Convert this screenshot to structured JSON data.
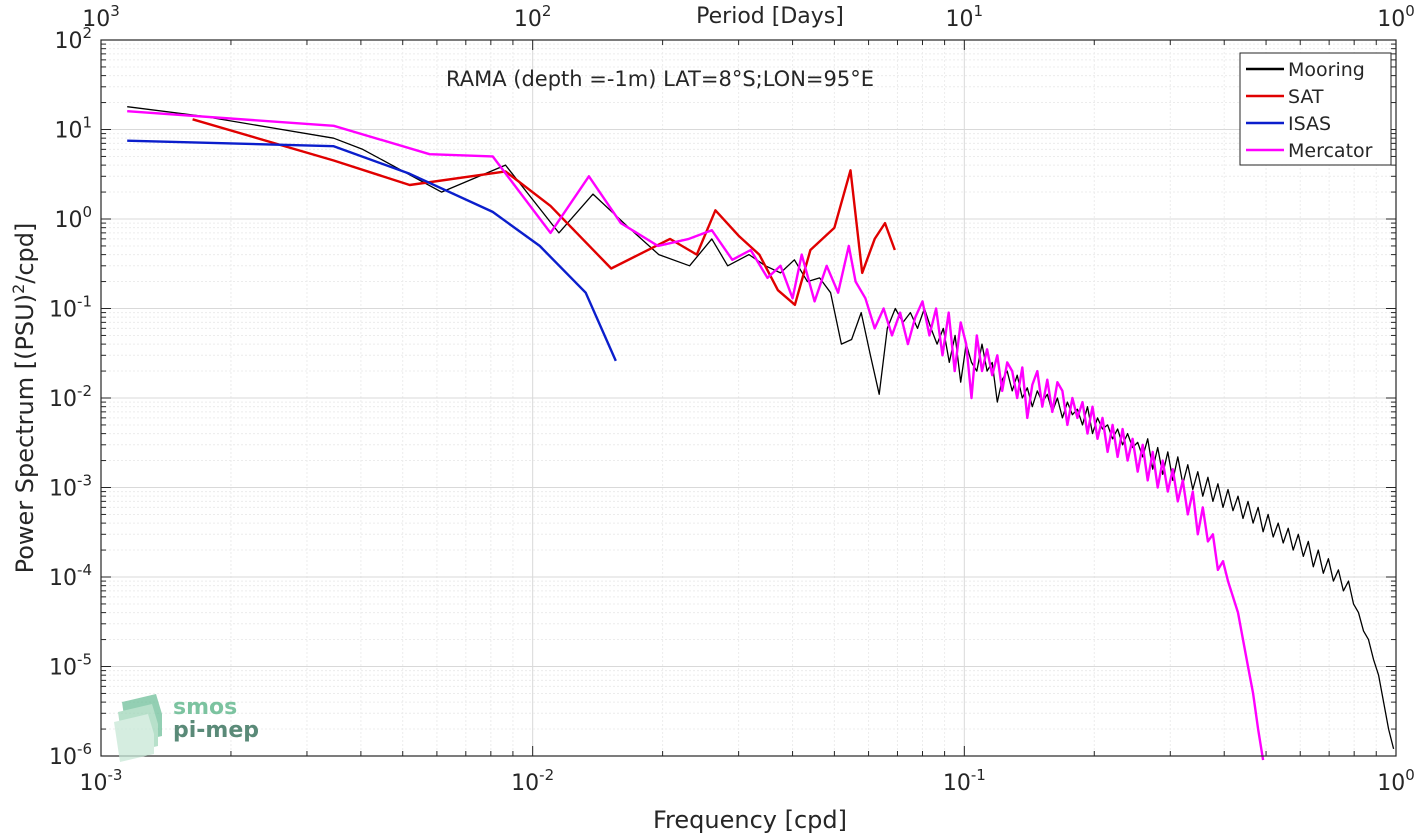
{
  "chart_data": {
    "type": "line",
    "title": "RAMA (depth =-1m) LAT=8°S;LON=95°E",
    "xlabel": "Frequency [cpd]",
    "ylabel_parts": {
      "pre": "Power Spectrum [(PSU)",
      "sup": "2",
      "post": "/cpd]"
    },
    "top_xlabel": "Period [Days]",
    "x_scale": "log",
    "y_scale": "log",
    "xlim": [
      0.001,
      1
    ],
    "ylim": [
      1e-06,
      100
    ],
    "grid": true,
    "minor_grid": true,
    "legend_position": "top-right",
    "x_ticks": [
      {
        "value": 0.001,
        "base": "10",
        "exp": "-3"
      },
      {
        "value": 0.01,
        "base": "10",
        "exp": "-2"
      },
      {
        "value": 0.1,
        "base": "10",
        "exp": "-1"
      },
      {
        "value": 1,
        "base": "10",
        "exp": "0"
      }
    ],
    "top_ticks": [
      {
        "freq": 0.001,
        "base": "10",
        "exp": "3"
      },
      {
        "freq": 0.01,
        "base": "10",
        "exp": "2"
      },
      {
        "freq": 0.1,
        "base": "10",
        "exp": "1"
      },
      {
        "freq": 1,
        "base": "10",
        "exp": "0"
      }
    ],
    "y_ticks": [
      {
        "value": 100,
        "base": "10",
        "exp": "2"
      },
      {
        "value": 10,
        "base": "10",
        "exp": "1"
      },
      {
        "value": 1,
        "base": "10",
        "exp": "0"
      },
      {
        "value": 0.1,
        "base": "10",
        "exp": "-1"
      },
      {
        "value": 0.01,
        "base": "10",
        "exp": "-2"
      },
      {
        "value": 0.001,
        "base": "10",
        "exp": "-3"
      },
      {
        "value": 0.0001,
        "base": "10",
        "exp": "-4"
      },
      {
        "value": 1e-05,
        "base": "10",
        "exp": "-5"
      },
      {
        "value": 1e-06,
        "base": "10",
        "exp": "-6"
      }
    ],
    "series": [
      {
        "name": "Mooring",
        "color": "#000000",
        "width": 1.3,
        "x": [
          0.00115,
          0.00173,
          0.00346,
          0.00404,
          0.00615,
          0.00865,
          0.0115,
          0.0138,
          0.0167,
          0.0196,
          0.0231,
          0.026,
          0.0283,
          0.0317,
          0.0346,
          0.0375,
          0.0404,
          0.0433,
          0.0462,
          0.049,
          0.0519,
          0.0548,
          0.0577,
          0.0606,
          0.0635,
          0.0663,
          0.0692,
          0.0721,
          0.075,
          0.0779,
          0.0808,
          0.0837,
          0.0865,
          0.0894,
          0.0923,
          0.0952,
          0.0981,
          0.101,
          0.1039,
          0.1069,
          0.1099,
          0.1129,
          0.116,
          0.1192,
          0.1224,
          0.1257,
          0.1291,
          0.1326,
          0.1362,
          0.1399,
          0.1437,
          0.1476,
          0.1516,
          0.1557,
          0.1599,
          0.1643,
          0.1687,
          0.1733,
          0.178,
          0.1828,
          0.1878,
          0.1929,
          0.1981,
          0.2035,
          0.209,
          0.2147,
          0.2205,
          0.2265,
          0.2326,
          0.2389,
          0.2454,
          0.2521,
          0.2589,
          0.2659,
          0.2731,
          0.2805,
          0.2881,
          0.296,
          0.304,
          0.3122,
          0.3207,
          0.3294,
          0.3383,
          0.3475,
          0.3569,
          0.3666,
          0.3766,
          0.3868,
          0.3973,
          0.4081,
          0.4191,
          0.4305,
          0.4422,
          0.4542,
          0.4665,
          0.4792,
          0.4922,
          0.5055,
          0.5193,
          0.5334,
          0.5478,
          0.5627,
          0.578,
          0.5937,
          0.6098,
          0.6263,
          0.6433,
          0.6608,
          0.6787,
          0.6971,
          0.7161,
          0.7355,
          0.7555,
          0.776,
          0.797,
          0.8187,
          0.8409,
          0.8637,
          0.8871,
          0.9112,
          0.9359,
          0.9613,
          0.9874
        ],
        "y": [
          18,
          14,
          8,
          6,
          2,
          4,
          0.7,
          1.9,
          0.8,
          0.4,
          0.3,
          0.6,
          0.3,
          0.4,
          0.3,
          0.25,
          0.35,
          0.2,
          0.22,
          0.15,
          0.04,
          0.045,
          0.09,
          0.03,
          0.011,
          0.06,
          0.1,
          0.07,
          0.09,
          0.06,
          0.1,
          0.06,
          0.04,
          0.06,
          0.025,
          0.05,
          0.015,
          0.04,
          0.025,
          0.02,
          0.04,
          0.02,
          0.025,
          0.009,
          0.016,
          0.02,
          0.012,
          0.018,
          0.01,
          0.013,
          0.008,
          0.012,
          0.009,
          0.011,
          0.007,
          0.01,
          0.006,
          0.009,
          0.0065,
          0.0075,
          0.005,
          0.008,
          0.004,
          0.006,
          0.0045,
          0.005,
          0.0035,
          0.0045,
          0.003,
          0.004,
          0.0028,
          0.0032,
          0.0022,
          0.0035,
          0.0016,
          0.0028,
          0.0014,
          0.0025,
          0.0012,
          0.0022,
          0.0011,
          0.0018,
          0.00095,
          0.0015,
          0.0008,
          0.0013,
          0.0007,
          0.0011,
          0.0006,
          0.00095,
          0.00055,
          0.0008,
          0.00045,
          0.0007,
          0.0004,
          0.0006,
          0.00032,
          0.0005,
          0.00028,
          0.0004,
          0.00024,
          0.00035,
          0.0002,
          0.0003,
          0.00017,
          0.00025,
          0.00013,
          0.0002,
          0.00011,
          0.00016,
          9e-05,
          0.00012,
          7e-05,
          9e-05,
          5e-05,
          4e-05,
          2.5e-05,
          2e-05,
          1.2e-05,
          8e-06,
          4e-06,
          2e-06,
          1.2e-06
        ]
      },
      {
        "name": "SAT",
        "color": "#e00000",
        "width": 2.4,
        "x": [
          0.00163,
          0.00346,
          0.00519,
          0.00865,
          0.011,
          0.0152,
          0.0208,
          0.024,
          0.0265,
          0.03,
          0.0335,
          0.037,
          0.0405,
          0.044,
          0.05,
          0.0545,
          0.058,
          0.062,
          0.0655,
          0.069
        ],
        "y": [
          13,
          4.5,
          2.4,
          3.4,
          1.4,
          0.28,
          0.6,
          0.4,
          1.25,
          0.65,
          0.4,
          0.16,
          0.11,
          0.45,
          0.8,
          3.5,
          0.25,
          0.6,
          0.9,
          0.45
        ]
      },
      {
        "name": "ISAS",
        "color": "#0b1ecc",
        "width": 2.4,
        "x": [
          0.00115,
          0.00346,
          0.00519,
          0.00808,
          0.01038,
          0.01327,
          0.01558
        ],
        "y": [
          7.5,
          6.5,
          3.2,
          1.2,
          0.5,
          0.15,
          0.026
        ]
      },
      {
        "name": "Mercator",
        "color": "#ff00ff",
        "width": 2.4,
        "x": [
          0.00115,
          0.00346,
          0.00577,
          0.00808,
          0.011,
          0.0135,
          0.016,
          0.0195,
          0.023,
          0.026,
          0.029,
          0.032,
          0.035,
          0.0375,
          0.04,
          0.042,
          0.045,
          0.048,
          0.051,
          0.054,
          0.056,
          0.059,
          0.062,
          0.065,
          0.068,
          0.071,
          0.074,
          0.077,
          0.08,
          0.083,
          0.086,
          0.089,
          0.092,
          0.095,
          0.0981,
          0.101,
          0.1039,
          0.1069,
          0.1099,
          0.1129,
          0.116,
          0.1192,
          0.1224,
          0.1257,
          0.1291,
          0.1326,
          0.1362,
          0.1399,
          0.1437,
          0.1476,
          0.1516,
          0.1557,
          0.1599,
          0.1643,
          0.1687,
          0.1733,
          0.178,
          0.1828,
          0.1878,
          0.1929,
          0.1981,
          0.2035,
          0.209,
          0.2147,
          0.2205,
          0.2265,
          0.2326,
          0.2389,
          0.2454,
          0.2521,
          0.2589,
          0.2659,
          0.2731,
          0.2805,
          0.2881,
          0.296,
          0.304,
          0.3122,
          0.3207,
          0.3294,
          0.3383,
          0.3475,
          0.3569,
          0.3666,
          0.3766,
          0.3868,
          0.3973,
          0.4081,
          0.4191,
          0.4305,
          0.4422,
          0.4542,
          0.4665,
          0.4792,
          0.4922
        ],
        "y": [
          16,
          11,
          5.3,
          5,
          0.7,
          3,
          0.9,
          0.5,
          0.6,
          0.75,
          0.35,
          0.45,
          0.22,
          0.3,
          0.13,
          0.4,
          0.12,
          0.3,
          0.15,
          0.5,
          0.2,
          0.13,
          0.06,
          0.1,
          0.05,
          0.09,
          0.04,
          0.08,
          0.12,
          0.05,
          0.1,
          0.03,
          0.09,
          0.02,
          0.07,
          0.04,
          0.01,
          0.05,
          0.02,
          0.035,
          0.018,
          0.03,
          0.012,
          0.025,
          0.02,
          0.01,
          0.022,
          0.006,
          0.014,
          0.02,
          0.008,
          0.016,
          0.007,
          0.015,
          0.012,
          0.005,
          0.01,
          0.006,
          0.009,
          0.004,
          0.008,
          0.0035,
          0.006,
          0.0025,
          0.005,
          0.0022,
          0.0045,
          0.002,
          0.0035,
          0.0015,
          0.003,
          0.0012,
          0.0025,
          0.001,
          0.002,
          0.0009,
          0.0016,
          0.0007,
          0.0012,
          0.0005,
          0.0009,
          0.0003,
          0.0006,
          0.00025,
          0.0003,
          0.00012,
          0.00015,
          9e-05,
          6e-05,
          4e-05,
          2e-05,
          1e-05,
          5e-06,
          2e-06,
          9e-07
        ]
      }
    ]
  },
  "watermark": {
    "line1": "smos",
    "line2": "pi-mep"
  }
}
